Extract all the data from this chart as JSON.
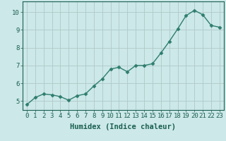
{
  "x": [
    0,
    1,
    2,
    3,
    4,
    5,
    6,
    7,
    8,
    9,
    10,
    11,
    12,
    13,
    14,
    15,
    16,
    17,
    18,
    19,
    20,
    21,
    22,
    23
  ],
  "y": [
    4.8,
    5.2,
    5.4,
    5.35,
    5.25,
    5.05,
    5.3,
    5.4,
    5.85,
    6.25,
    6.8,
    6.9,
    6.65,
    7.0,
    7.0,
    7.1,
    7.7,
    8.35,
    9.05,
    9.8,
    10.1,
    9.85,
    9.25,
    9.15
  ],
  "line_color": "#2e7d6e",
  "marker": "D",
  "marker_size": 2.5,
  "bg_color": "#cce8e8",
  "grid_color": "#b0c8c8",
  "xlabel": "Humidex (Indice chaleur)",
  "xlim": [
    -0.5,
    23.5
  ],
  "ylim": [
    4.5,
    10.6
  ],
  "yticks": [
    5,
    6,
    7,
    8,
    9,
    10
  ],
  "xticks": [
    0,
    1,
    2,
    3,
    4,
    5,
    6,
    7,
    8,
    9,
    10,
    11,
    12,
    13,
    14,
    15,
    16,
    17,
    18,
    19,
    20,
    21,
    22,
    23
  ],
  "xlabel_color": "#1a5f50",
  "tick_color": "#1a5f50",
  "xlabel_fontsize": 7.5,
  "tick_fontsize": 6.5,
  "line_width": 1.0
}
